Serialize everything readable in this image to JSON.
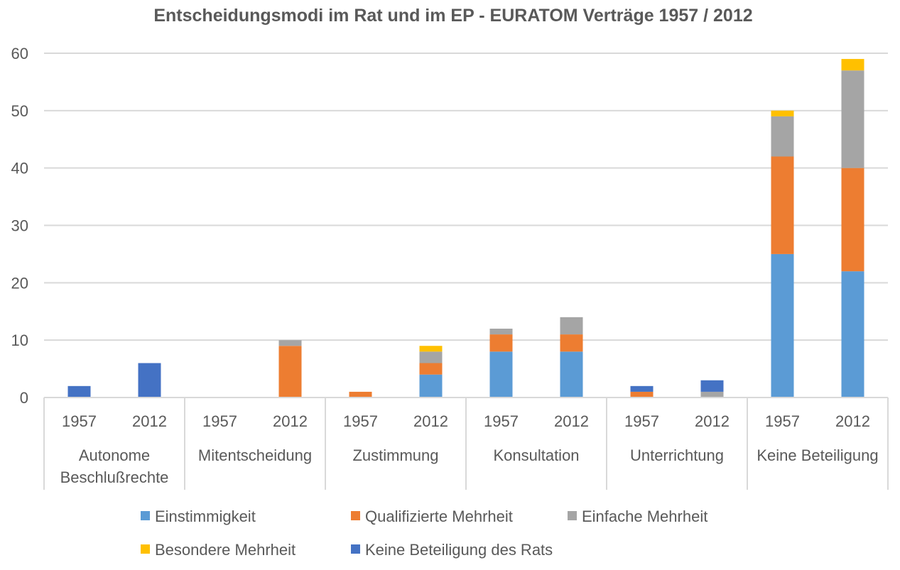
{
  "chart_data": {
    "type": "bar",
    "stacked": true,
    "title": "Entscheidungsmodi im Rat und im EP - EURATOM Verträge 1957 / 2012",
    "xlabel": "",
    "ylabel": "",
    "ylim": [
      0,
      60
    ],
    "yticks": [
      0,
      10,
      20,
      30,
      40,
      50,
      60
    ],
    "grid": true,
    "legend_position": "bottom",
    "groups": [
      {
        "label_lines": [
          "Autonome",
          "Beschlußrechte"
        ],
        "years": [
          "1957",
          "2012"
        ]
      },
      {
        "label_lines": [
          "Mitentscheidung"
        ],
        "years": [
          "1957",
          "2012"
        ]
      },
      {
        "label_lines": [
          "Zustimmung"
        ],
        "years": [
          "1957",
          "2012"
        ]
      },
      {
        "label_lines": [
          "Konsultation"
        ],
        "years": [
          "1957",
          "2012"
        ]
      },
      {
        "label_lines": [
          "Unterrichtung"
        ],
        "years": [
          "1957",
          "2012"
        ]
      },
      {
        "label_lines": [
          "Keine Beteiligung"
        ],
        "years": [
          "1957",
          "2012"
        ]
      }
    ],
    "series": [
      {
        "name": "Einstimmigkeit",
        "color": "#5B9BD5",
        "values": [
          0,
          0,
          0,
          0,
          0,
          4,
          8,
          8,
          0,
          0,
          25,
          22
        ]
      },
      {
        "name": "Qualifizierte Mehrheit",
        "color": "#ED7D31",
        "values": [
          0,
          0,
          0,
          9,
          1,
          2,
          3,
          3,
          1,
          0,
          17,
          18
        ]
      },
      {
        "name": "Einfache Mehrheit",
        "color": "#A5A5A5",
        "values": [
          0,
          0,
          0,
          1,
          0,
          2,
          1,
          3,
          0,
          1,
          7,
          17
        ]
      },
      {
        "name": "Besondere Mehrheit",
        "color": "#FFC000",
        "values": [
          0,
          0,
          0,
          0,
          0,
          1,
          0,
          0,
          0,
          0,
          1,
          2
        ]
      },
      {
        "name": "Keine Beteiligung des Rats",
        "color": "#4472C4",
        "values": [
          2,
          6,
          0,
          0,
          0,
          0,
          0,
          0,
          1,
          2,
          0,
          0
        ]
      }
    ]
  }
}
